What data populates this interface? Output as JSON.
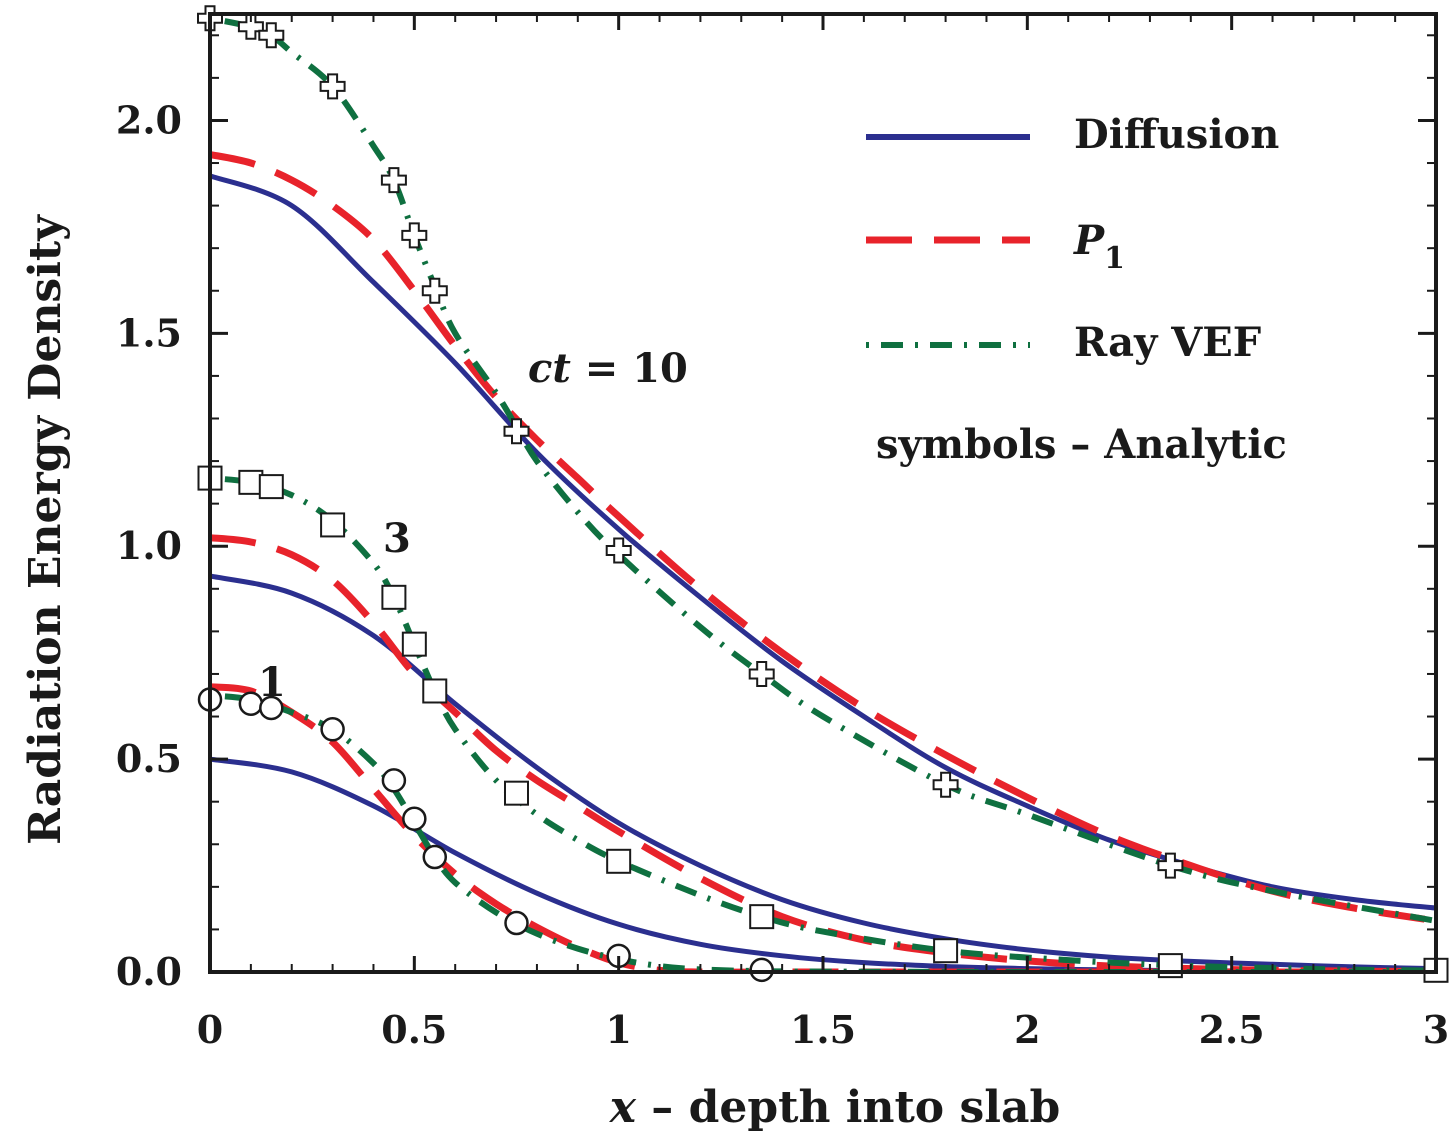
{
  "chart_data": {
    "type": "line",
    "xlabel_var": "x",
    "xlabel_rest": " – depth into slab",
    "ylabel": "Radiation Energy Density",
    "xlim": [
      0,
      3
    ],
    "ylim": [
      0,
      2.25
    ],
    "x_ticks": [
      0,
      0.5,
      1,
      1.5,
      2,
      2.5,
      3
    ],
    "x_tick_labels": [
      "0",
      "0.5",
      "1",
      "1.5",
      "2",
      "2.5",
      "3"
    ],
    "y_ticks": [
      0,
      0.5,
      1,
      1.5,
      2
    ],
    "y_tick_labels": [
      "0.0",
      "0.5",
      "1.0",
      "1.5",
      "2.0"
    ],
    "grid": false,
    "legend_position": "top-right",
    "legend": {
      "diffusion": "Diffusion",
      "p1_main": "P",
      "p1_sub": "1",
      "ray": "Ray VEF",
      "note": "symbols – Analytic"
    },
    "colors": {
      "diffusion": "#2b2f8f",
      "p1": "#e8232b",
      "ray": "#0f7040",
      "axis": "#1a1a1a"
    },
    "annotations": {
      "ct_var": "ct",
      "ct_rest": " = 10",
      "t3": "3",
      "t1": "1"
    },
    "series": [
      {
        "name": "Diffusion",
        "time": "1",
        "style": "diffusion",
        "x": [
          0,
          0.2,
          0.4,
          0.6,
          0.8,
          1.0,
          1.2,
          1.4,
          1.6,
          1.8,
          2.0,
          2.2,
          2.4,
          2.6,
          2.8,
          3.0
        ],
        "y": [
          0.5,
          0.47,
          0.39,
          0.28,
          0.185,
          0.112,
          0.065,
          0.038,
          0.022,
          0.013,
          0.008,
          0.005,
          0.003,
          0.002,
          0.001,
          0.001
        ]
      },
      {
        "name": "Diffusion",
        "time": "3",
        "style": "diffusion",
        "x": [
          0,
          0.2,
          0.4,
          0.6,
          0.8,
          1.0,
          1.2,
          1.4,
          1.6,
          1.8,
          2.0,
          2.2,
          2.4,
          2.6,
          2.8,
          3.0
        ],
        "y": [
          0.93,
          0.89,
          0.79,
          0.63,
          0.48,
          0.35,
          0.25,
          0.17,
          0.115,
          0.078,
          0.052,
          0.035,
          0.025,
          0.018,
          0.012,
          0.008
        ]
      },
      {
        "name": "Diffusion",
        "time": "10",
        "style": "diffusion",
        "x": [
          0,
          0.2,
          0.4,
          0.6,
          0.8,
          1.0,
          1.2,
          1.4,
          1.6,
          1.8,
          2.0,
          2.2,
          2.4,
          2.6,
          2.8,
          3.0
        ],
        "y": [
          1.87,
          1.8,
          1.62,
          1.43,
          1.22,
          1.04,
          0.88,
          0.73,
          0.6,
          0.48,
          0.39,
          0.31,
          0.25,
          0.2,
          0.17,
          0.15
        ]
      },
      {
        "name": "P1",
        "time": "1",
        "style": "p1",
        "x": [
          0,
          0.1,
          0.2,
          0.3,
          0.4,
          0.5,
          0.6,
          0.7,
          0.8,
          0.9,
          1.0,
          1.1,
          1.2,
          1.4,
          1.6,
          2.0,
          3.0
        ],
        "y": [
          0.67,
          0.66,
          0.61,
          0.54,
          0.43,
          0.32,
          0.23,
          0.16,
          0.105,
          0.058,
          0.022,
          0.004,
          0.0,
          0.0,
          0.0,
          0.0,
          0.0
        ]
      },
      {
        "name": "P1",
        "time": "3",
        "style": "p1",
        "x": [
          0,
          0.1,
          0.2,
          0.3,
          0.4,
          0.5,
          0.6,
          0.7,
          0.8,
          0.9,
          1.0,
          1.2,
          1.4,
          1.6,
          1.8,
          2.0,
          2.2,
          2.4,
          2.6,
          2.8,
          3.0
        ],
        "y": [
          1.02,
          1.01,
          0.98,
          0.92,
          0.82,
          0.7,
          0.61,
          0.52,
          0.45,
          0.39,
          0.33,
          0.22,
          0.13,
          0.075,
          0.045,
          0.026,
          0.014,
          0.008,
          0.004,
          0.002,
          0.001
        ]
      },
      {
        "name": "P1",
        "time": "10",
        "style": "p1",
        "x": [
          0,
          0.1,
          0.2,
          0.3,
          0.4,
          0.5,
          0.6,
          0.7,
          0.8,
          0.9,
          1.0,
          1.2,
          1.4,
          1.6,
          1.8,
          2.0,
          2.2,
          2.4,
          2.6,
          2.8,
          3.0
        ],
        "y": [
          1.92,
          1.9,
          1.86,
          1.8,
          1.72,
          1.6,
          1.47,
          1.35,
          1.25,
          1.16,
          1.07,
          0.9,
          0.75,
          0.62,
          0.51,
          0.41,
          0.32,
          0.25,
          0.19,
          0.15,
          0.12
        ]
      },
      {
        "name": "Ray VEF",
        "time": "1",
        "style": "ray",
        "x": [
          0,
          0.1,
          0.2,
          0.3,
          0.4,
          0.45,
          0.5,
          0.55,
          0.6,
          0.7,
          0.8,
          0.9,
          1.0,
          1.1,
          1.2,
          1.35,
          1.5,
          2.0,
          3.0
        ],
        "y": [
          0.65,
          0.64,
          0.61,
          0.57,
          0.49,
          0.43,
          0.35,
          0.27,
          0.21,
          0.14,
          0.09,
          0.055,
          0.03,
          0.014,
          0.006,
          0.002,
          0.001,
          0.0,
          0.0
        ]
      },
      {
        "name": "Ray VEF",
        "time": "3",
        "style": "ray",
        "x": [
          0,
          0.1,
          0.2,
          0.3,
          0.4,
          0.45,
          0.5,
          0.55,
          0.6,
          0.7,
          0.8,
          0.9,
          1.0,
          1.2,
          1.35,
          1.5,
          1.8,
          2.1,
          2.35,
          2.7,
          3.0
        ],
        "y": [
          1.16,
          1.15,
          1.12,
          1.06,
          0.96,
          0.88,
          0.77,
          0.66,
          0.57,
          0.45,
          0.37,
          0.31,
          0.26,
          0.18,
          0.13,
          0.095,
          0.05,
          0.028,
          0.016,
          0.007,
          0.003
        ]
      },
      {
        "name": "Ray VEF",
        "time": "10",
        "style": "ray",
        "x": [
          0,
          0.1,
          0.15,
          0.2,
          0.3,
          0.4,
          0.45,
          0.5,
          0.55,
          0.6,
          0.7,
          0.75,
          0.8,
          0.9,
          1.0,
          1.2,
          1.35,
          1.5,
          1.8,
          2.0,
          2.35,
          2.6,
          3.0
        ],
        "y": [
          2.24,
          2.22,
          2.2,
          2.16,
          2.08,
          1.94,
          1.86,
          1.73,
          1.61,
          1.5,
          1.36,
          1.28,
          1.2,
          1.08,
          0.98,
          0.81,
          0.7,
          0.6,
          0.44,
          0.37,
          0.25,
          0.19,
          0.12
        ]
      }
    ],
    "analytic": [
      {
        "time": "1",
        "marker": "circle",
        "x": [
          0,
          0.1,
          0.15,
          0.3,
          0.45,
          0.5,
          0.55,
          0.75,
          1.0,
          1.35
        ],
        "y": [
          0.64,
          0.63,
          0.62,
          0.57,
          0.45,
          0.36,
          0.27,
          0.115,
          0.038,
          0.005
        ]
      },
      {
        "time": "3",
        "marker": "square",
        "x": [
          0,
          0.1,
          0.15,
          0.3,
          0.45,
          0.5,
          0.55,
          0.75,
          1.0,
          1.35,
          1.8,
          2.35,
          3.0
        ],
        "y": [
          1.16,
          1.15,
          1.14,
          1.05,
          0.88,
          0.77,
          0.66,
          0.42,
          0.26,
          0.13,
          0.05,
          0.015,
          0.004
        ]
      },
      {
        "time": "10",
        "marker": "plus",
        "x": [
          0,
          0.1,
          0.15,
          0.3,
          0.45,
          0.5,
          0.55,
          0.75,
          1.0,
          1.35,
          1.8,
          2.35
        ],
        "y": [
          2.24,
          2.22,
          2.2,
          2.08,
          1.86,
          1.73,
          1.6,
          1.27,
          0.99,
          0.7,
          0.44,
          0.25
        ]
      }
    ]
  }
}
